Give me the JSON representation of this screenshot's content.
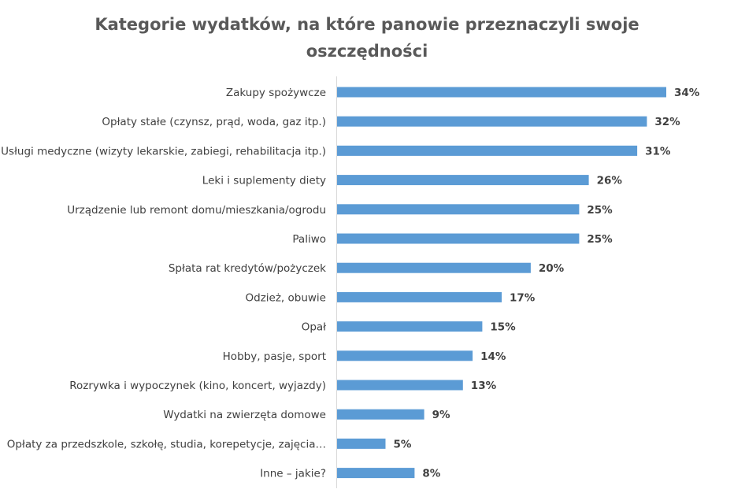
{
  "chart_data": {
    "type": "bar",
    "orientation": "horizontal",
    "title": "Kategorie wydatków, na które panowie przeznaczyli swoje oszczędności",
    "title_lines": [
      "Kategorie wydatków, na które panowie przeznaczyli swoje",
      "oszczędności"
    ],
    "categories": [
      "Zakupy spożywcze",
      "Opłaty stałe (czynsz, prąd, woda, gaz itp.)",
      "Usługi medyczne (wizyty lekarskie, zabiegi, rehabilitacja itp.)",
      "Leki i suplementy diety",
      "Urządzenie lub remont domu/mieszkania/ogrodu",
      "Paliwo",
      "Spłata rat kredytów/pożyczek",
      "Odzież, obuwie",
      "Opał",
      "Hobby, pasje, sport",
      "Rozrywka i wypoczynek (kino, koncert, wyjazdy)",
      "Wydatki na zwierzęta domowe",
      "Opłaty za przedszkole, szkołę, studia, korepetycje, zajęcia…",
      "Inne – jakie?"
    ],
    "values": [
      34,
      32,
      31,
      26,
      25,
      25,
      20,
      17,
      15,
      14,
      13,
      9,
      5,
      8
    ],
    "value_labels": [
      "34%",
      "32%",
      "31%",
      "26%",
      "25%",
      "25%",
      "20%",
      "17%",
      "15%",
      "14%",
      "13%",
      "9%",
      "5%",
      "8%"
    ],
    "unit": "%",
    "xlim": [
      0,
      34
    ],
    "grid": false,
    "legend": "none",
    "bar_color": "#5b9bd5"
  }
}
